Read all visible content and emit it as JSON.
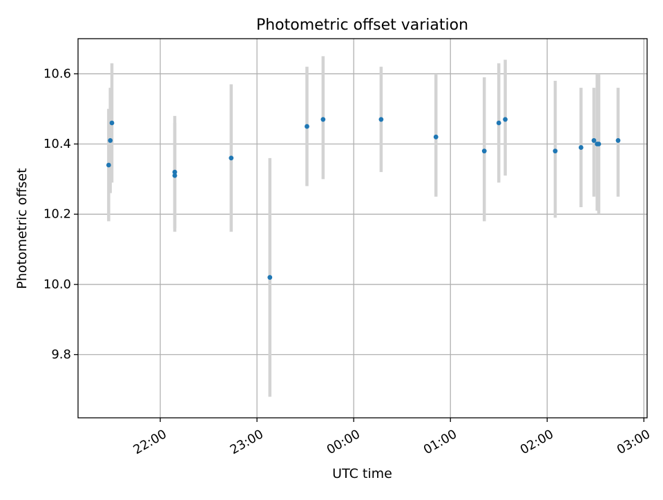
{
  "chart_data": {
    "type": "scatter",
    "title": "Photometric offset variation",
    "xlabel": "UTC time",
    "ylabel": "Photometric offset",
    "x_is_time": true,
    "x_range": [
      "21:09",
      "03:02"
    ],
    "ylim": [
      9.62,
      10.7
    ],
    "grid": true,
    "x_ticks": [
      {
        "t": "22:00",
        "label": "22:00"
      },
      {
        "t": "23:00",
        "label": "23:00"
      },
      {
        "t": "00:00",
        "label": "00:00"
      },
      {
        "t": "01:00",
        "label": "01:00"
      },
      {
        "t": "02:00",
        "label": "02:00"
      },
      {
        "t": "03:00",
        "label": "03:00"
      }
    ],
    "y_ticks": [
      {
        "v": 9.8,
        "label": "9.8"
      },
      {
        "v": 10.0,
        "label": "10.0"
      },
      {
        "v": 10.2,
        "label": "10.2"
      },
      {
        "v": 10.4,
        "label": "10.4"
      },
      {
        "v": 10.6,
        "label": "10.6"
      }
    ],
    "points": [
      {
        "t": "21:28",
        "y": 10.34,
        "err_lo": 10.18,
        "err_hi": 10.5
      },
      {
        "t": "21:29",
        "y": 10.41,
        "err_lo": 10.26,
        "err_hi": 10.56
      },
      {
        "t": "21:30",
        "y": 10.46,
        "err_lo": 10.29,
        "err_hi": 10.63
      },
      {
        "t": "22:09",
        "y": 10.32,
        "err_lo": 10.15,
        "err_hi": 10.48
      },
      {
        "t": "22:09",
        "y": 10.31,
        "err_lo": 10.16,
        "err_hi": 10.46
      },
      {
        "t": "22:44",
        "y": 10.36,
        "err_lo": 10.15,
        "err_hi": 10.57
      },
      {
        "t": "23:08",
        "y": 10.02,
        "err_lo": 9.68,
        "err_hi": 10.36
      },
      {
        "t": "23:31",
        "y": 10.45,
        "err_lo": 10.28,
        "err_hi": 10.62
      },
      {
        "t": "23:41",
        "y": 10.47,
        "err_lo": 10.3,
        "err_hi": 10.65
      },
      {
        "t": "00:17",
        "y": 10.47,
        "err_lo": 10.32,
        "err_hi": 10.62
      },
      {
        "t": "00:51",
        "y": 10.42,
        "err_lo": 10.25,
        "err_hi": 10.6
      },
      {
        "t": "01:21",
        "y": 10.38,
        "err_lo": 10.18,
        "err_hi": 10.59
      },
      {
        "t": "01:30",
        "y": 10.46,
        "err_lo": 10.29,
        "err_hi": 10.63
      },
      {
        "t": "01:34",
        "y": 10.47,
        "err_lo": 10.31,
        "err_hi": 10.64
      },
      {
        "t": "02:05",
        "y": 10.38,
        "err_lo": 10.19,
        "err_hi": 10.58
      },
      {
        "t": "02:21",
        "y": 10.39,
        "err_lo": 10.22,
        "err_hi": 10.56
      },
      {
        "t": "02:29",
        "y": 10.41,
        "err_lo": 10.25,
        "err_hi": 10.56
      },
      {
        "t": "02:31",
        "y": 10.4,
        "err_lo": 10.21,
        "err_hi": 10.6
      },
      {
        "t": "02:32",
        "y": 10.4,
        "err_lo": 10.2,
        "err_hi": 10.6
      },
      {
        "t": "02:44",
        "y": 10.41,
        "err_lo": 10.25,
        "err_hi": 10.56
      }
    ],
    "colors": {
      "point": "#1f77b4",
      "errorbar": "#d3d3d3",
      "grid": "#b0b0b0",
      "axis": "#000000"
    }
  }
}
